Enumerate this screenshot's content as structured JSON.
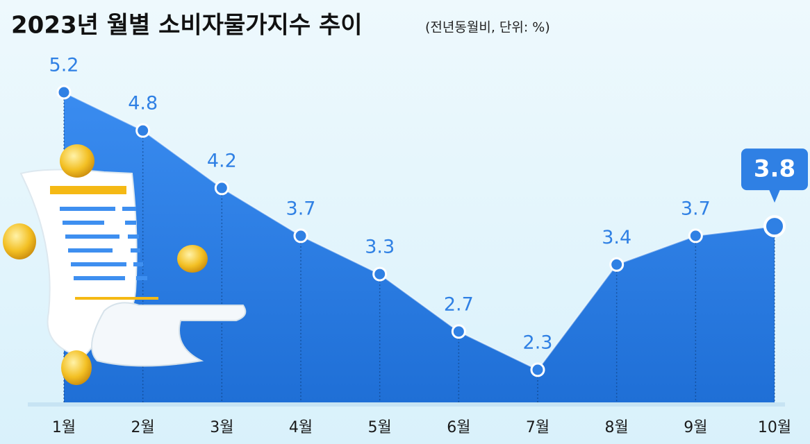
{
  "chart_data": {
    "type": "area",
    "title": "2023년 월별 소비자물가지수 추이",
    "subtitle": "(전년동월비, 단위: %)",
    "categories": [
      "1월",
      "2월",
      "3월",
      "4월",
      "5월",
      "6월",
      "7월",
      "8월",
      "9월",
      "10월"
    ],
    "values": [
      5.2,
      4.8,
      4.2,
      3.7,
      3.3,
      2.7,
      2.3,
      3.4,
      3.7,
      3.8
    ],
    "color": "#2f80e4"
  }
}
